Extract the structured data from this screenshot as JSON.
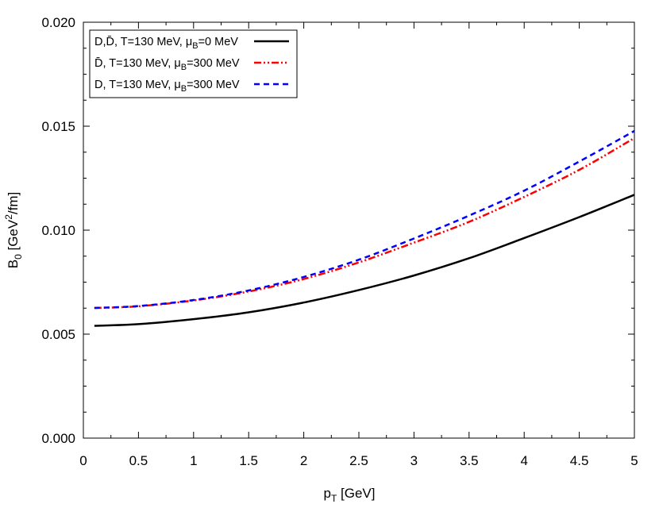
{
  "chart_data": {
    "type": "line",
    "title": "",
    "xlabel": "p_T [GeV]",
    "ylabel": "B_0 [GeV^2/fm]",
    "xlim": [
      0,
      5
    ],
    "ylim": [
      0,
      0.02
    ],
    "xticks": [
      "0",
      "0.5",
      "1",
      "1.5",
      "2",
      "2.5",
      "3",
      "3.5",
      "4",
      "4.5",
      "5"
    ],
    "yticks": [
      "0.000",
      "0.005",
      "0.010",
      "0.015",
      "0.020"
    ],
    "grid": false,
    "legend_position": "top-left",
    "x": [
      0.1,
      0.5,
      1,
      1.5,
      2,
      2.5,
      3,
      3.5,
      4,
      4.5,
      5
    ],
    "series": [
      {
        "name": "D,D̄, T=130 MeV, μB=0 MeV",
        "label_main": "D,D̄, T=130 MeV, μ",
        "label_sub": "B",
        "label_tail": "=0 MeV",
        "color": "#000000",
        "style": "solid",
        "values": [
          0.0054,
          0.00548,
          0.00572,
          0.00605,
          0.00652,
          0.00712,
          0.00782,
          0.00865,
          0.00962,
          0.01063,
          0.0117
        ]
      },
      {
        "name": "D̄, T=130 MeV, μB=300 MeV",
        "label_main": "D̄, T=130 MeV, μ",
        "label_sub": "B",
        "label_tail": "=300 MeV",
        "color": "#ff0000",
        "style": "dash-dot-dot",
        "values": [
          0.00626,
          0.00634,
          0.00662,
          0.00705,
          0.00765,
          0.00845,
          0.0094,
          0.0104,
          0.0116,
          0.0129,
          0.01443
        ]
      },
      {
        "name": "D, T=130 MeV, μB=300 MeV",
        "label_main": "D, T=130 MeV, μ",
        "label_sub": "B",
        "label_tail": "=300 MeV",
        "color": "#0000ff",
        "style": "dashed",
        "values": [
          0.00626,
          0.00635,
          0.00664,
          0.0071,
          0.00775,
          0.00858,
          0.0096,
          0.0107,
          0.0119,
          0.0133,
          0.01477
        ]
      }
    ]
  }
}
